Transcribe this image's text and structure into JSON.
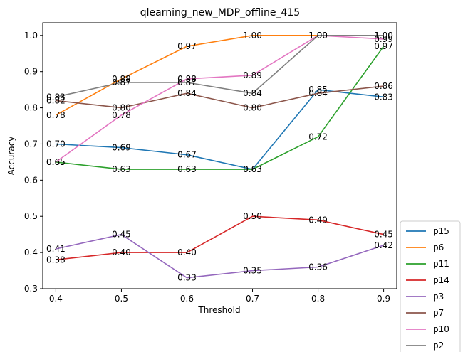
{
  "chart_data": {
    "type": "line",
    "title": "qlearning_new_MDP_offline_415",
    "xlabel": "Threshold",
    "ylabel": "Accuracy",
    "x": [
      0.4,
      0.5,
      0.6,
      0.7,
      0.8,
      0.9
    ],
    "xticks": [
      "0.4",
      "0.5",
      "0.6",
      "0.7",
      "0.8",
      "0.9"
    ],
    "yticks": [
      "0.3",
      "0.4",
      "0.5",
      "0.6",
      "0.7",
      "0.8",
      "0.9",
      "1.0"
    ],
    "xlim": [
      0.38,
      0.92
    ],
    "ylim": [
      0.3,
      1.035
    ],
    "grid": false,
    "legend_position": "lower-right-outside",
    "series": [
      {
        "name": "p15",
        "color": "#1f77b4",
        "values": [
          0.7,
          0.69,
          0.67,
          0.63,
          0.85,
          0.83
        ]
      },
      {
        "name": "p6",
        "color": "#ff7f0e",
        "values": [
          0.78,
          0.88,
          0.97,
          1.0,
          1.0,
          1.0
        ]
      },
      {
        "name": "p11",
        "color": "#2ca02c",
        "values": [
          0.65,
          0.63,
          0.63,
          0.63,
          0.72,
          0.97
        ]
      },
      {
        "name": "p14",
        "color": "#d62728",
        "values": [
          0.38,
          0.4,
          0.4,
          0.5,
          0.49,
          0.45
        ]
      },
      {
        "name": "p3",
        "color": "#9467bd",
        "values": [
          0.41,
          0.45,
          0.33,
          0.35,
          0.36,
          0.42
        ]
      },
      {
        "name": "p7",
        "color": "#8c564b",
        "values": [
          0.82,
          0.8,
          0.84,
          0.8,
          0.84,
          0.86
        ]
      },
      {
        "name": "p10",
        "color": "#e377c2",
        "values": [
          0.65,
          0.78,
          0.88,
          0.89,
          1.0,
          0.99
        ]
      },
      {
        "name": "p2",
        "color": "#7f7f7f",
        "values": [
          0.83,
          0.87,
          0.87,
          0.84,
          1.0,
          1.0
        ]
      }
    ]
  }
}
